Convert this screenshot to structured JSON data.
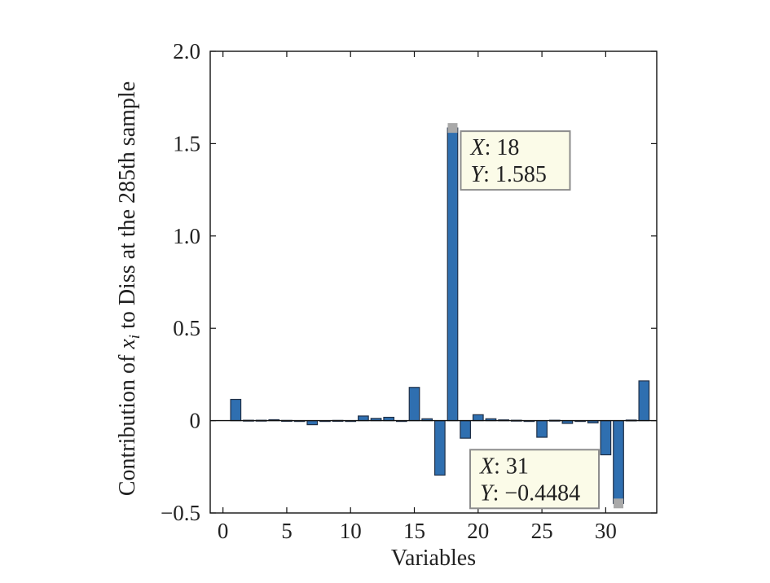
{
  "chart_data": {
    "type": "bar",
    "xlabel": "Variables",
    "ylabel_parts": {
      "before": "Contribution of ",
      "var": "x",
      "sub": "i",
      "after": " to Diss at the 285th sample"
    },
    "xlim": [
      -1,
      34
    ],
    "ylim": [
      -0.5,
      2.0
    ],
    "xticks": [
      0,
      5,
      10,
      15,
      20,
      25,
      30
    ],
    "xtick_labels": [
      "0",
      "5",
      "10",
      "15",
      "20",
      "25",
      "30"
    ],
    "yticks": [
      -0.5,
      0,
      0.5,
      1.0,
      1.5,
      2.0
    ],
    "ytick_labels": [
      "−0.5",
      "0",
      "0.5",
      "1.0",
      "1.5",
      "2.0"
    ],
    "x": [
      1,
      2,
      3,
      4,
      5,
      6,
      7,
      8,
      9,
      10,
      11,
      12,
      13,
      14,
      15,
      16,
      17,
      18,
      19,
      20,
      21,
      22,
      23,
      24,
      25,
      26,
      27,
      28,
      29,
      30,
      31,
      32,
      33
    ],
    "values": [
      0.115,
      0.002,
      0.002,
      0.005,
      0.001,
      0.0,
      -0.022,
      0.0,
      0.001,
      0.0,
      0.025,
      0.012,
      0.018,
      0.0,
      0.18,
      0.01,
      -0.295,
      1.585,
      -0.095,
      0.032,
      0.01,
      0.004,
      0.002,
      0.0,
      -0.09,
      0.002,
      -0.015,
      0.0,
      -0.012,
      -0.185,
      -0.4484,
      0.003,
      0.215
    ],
    "grid": false,
    "legend": "none",
    "colors": {
      "bar_fill": "#2f6fb0",
      "bar_edge": "#1f2f46",
      "datatip_fill": "#fbfbe8",
      "datatip_border": "#8c8c8c",
      "datatip_marker": "#a9a9a9"
    },
    "datatips": [
      {
        "x": 18,
        "y": 1.585,
        "x_label": "X",
        "y_label": "Y",
        "x_text": "18",
        "y_text": "1.585",
        "box_side": "right-below"
      },
      {
        "x": 31,
        "y": -0.4484,
        "x_label": "X",
        "y_label": "Y",
        "x_text": "31",
        "y_text": "−0.4484",
        "box_side": "left-above"
      }
    ]
  }
}
